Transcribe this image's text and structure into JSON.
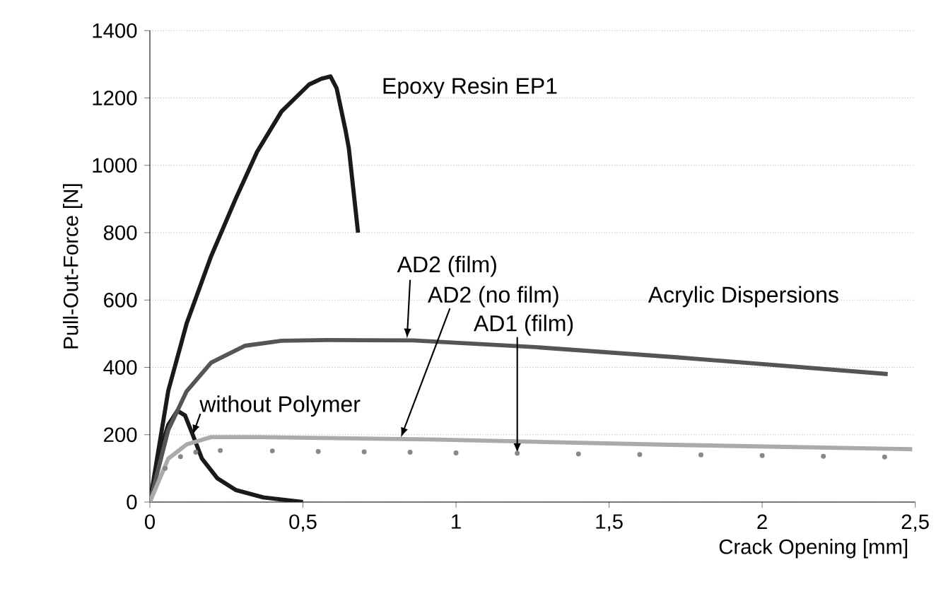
{
  "chart_data": {
    "type": "line",
    "xlabel": "Crack Opening [mm]",
    "ylabel": "Pull-Out-Force [N]",
    "xlim": [
      0,
      2.5
    ],
    "ylim": [
      0,
      1400
    ],
    "xticks": [
      0,
      {
        "value": 0.5,
        "label": "0,5"
      },
      1,
      {
        "value": 1.5,
        "label": "1,5"
      },
      2,
      {
        "value": 2.5,
        "label": "2,5"
      }
    ],
    "yticks": [
      0,
      200,
      400,
      600,
      800,
      1000,
      1200,
      1400
    ],
    "grid": "y",
    "line_style": "solid",
    "annotations": [
      "Acrylic Dispersions"
    ],
    "series": [
      {
        "name": "Epoxy Resin EP1",
        "color": "#1a1a1a",
        "x": [
          0,
          0.06,
          0.12,
          0.2,
          0.28,
          0.35,
          0.43,
          0.52,
          0.56,
          0.59,
          0.61,
          0.62,
          0.63,
          0.64,
          0.65,
          0.68
        ],
        "values": [
          0,
          330,
          530,
          730,
          900,
          1040,
          1160,
          1240,
          1257,
          1264,
          1229,
          1186,
          1143,
          1100,
          1050,
          800
        ]
      },
      {
        "name": "without Polymer",
        "color": "#1a1a1a",
        "x": [
          0,
          0.03,
          0.06,
          0.09,
          0.115,
          0.14,
          0.17,
          0.22,
          0.28,
          0.37,
          0.5
        ],
        "values": [
          0,
          143,
          229,
          271,
          257,
          200,
          129,
          71,
          36,
          14,
          0
        ]
      },
      {
        "name": "AD2 (film)",
        "color": "#555555",
        "x": [
          0,
          0.06,
          0.12,
          0.2,
          0.31,
          0.43,
          0.58,
          0.86,
          1.26,
          1.72,
          2.41
        ],
        "values": [
          0,
          214,
          329,
          414,
          464,
          479,
          481,
          480,
          460,
          430,
          380
        ]
      },
      {
        "name": "AD2 (no film)",
        "color": "#aaaaaa",
        "x": [
          0,
          0.06,
          0.12,
          0.2,
          0.35,
          0.91,
          1.7,
          2.49
        ],
        "values": [
          0,
          129,
          171,
          193,
          193,
          186,
          170,
          157
        ]
      },
      {
        "name": "AD1 (film)",
        "color": "#888888",
        "type": "scatter",
        "x": [
          0.05,
          0.1,
          0.15,
          0.23,
          0.4,
          0.55,
          0.7,
          0.85,
          1.0,
          1.2,
          1.4,
          1.6,
          1.8,
          2.0,
          2.2,
          2.4
        ],
        "values": [
          100,
          135,
          148,
          153,
          152,
          150,
          149,
          148,
          146,
          145,
          143,
          141,
          140,
          138,
          136,
          134
        ]
      }
    ]
  }
}
